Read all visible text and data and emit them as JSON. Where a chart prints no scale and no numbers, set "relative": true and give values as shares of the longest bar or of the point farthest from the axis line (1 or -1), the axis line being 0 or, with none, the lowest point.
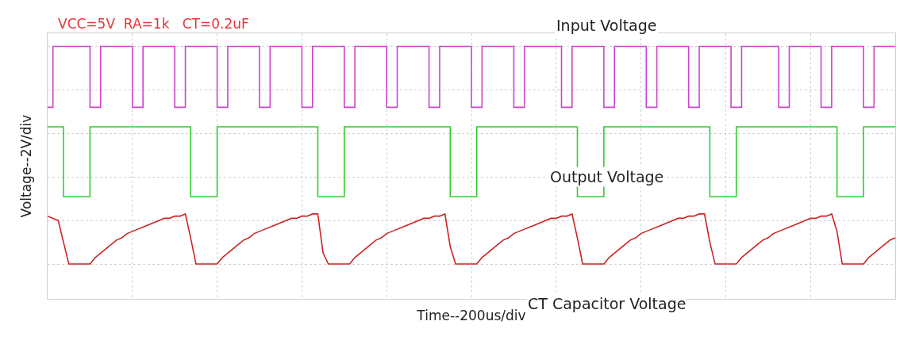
{
  "chart_data": {
    "type": "line",
    "relative": true,
    "xlabel": "Time--200us/div",
    "ylabel": "Voltage--2V/div",
    "annotations": [
      "VCC=5V  RA=1k   CT=0.2uF"
    ],
    "grid": true,
    "legend": false,
    "tick_labels": false,
    "marker": "none",
    "line_style": "solid",
    "categories": [
      null,
      null,
      null,
      null,
      null,
      null,
      null,
      null,
      null,
      null,
      null,
      null,
      null,
      null,
      null,
      null,
      null,
      null,
      null,
      null,
      null,
      null,
      null,
      null,
      null,
      null,
      null,
      null,
      null,
      null,
      null,
      null,
      null,
      null,
      null,
      null,
      null,
      null,
      null,
      null,
      null,
      null,
      null,
      null,
      null,
      null,
      null,
      null,
      null,
      null,
      null,
      null,
      null,
      null,
      null,
      null,
      null,
      null,
      null,
      null,
      null,
      null,
      null,
      null,
      null,
      null,
      null,
      null,
      null,
      null,
      null,
      null,
      null,
      null,
      null,
      null,
      null,
      null,
      null,
      null,
      null,
      null,
      null,
      null,
      null,
      null,
      null,
      null,
      null,
      null,
      null,
      null,
      null,
      null,
      null,
      null,
      null,
      null,
      null,
      null,
      null,
      null,
      null,
      null,
      null,
      null,
      null,
      null,
      null,
      null,
      null,
      null,
      null,
      null,
      null,
      null,
      null,
      null,
      null,
      null,
      null,
      null,
      null,
      null,
      null,
      null,
      null,
      null,
      null,
      null,
      null,
      null,
      null,
      null,
      null,
      null,
      null,
      null,
      null,
      null,
      null,
      null,
      null,
      null,
      null,
      null,
      null,
      null,
      null,
      null,
      null,
      null,
      null,
      null,
      null,
      null,
      null,
      null,
      null,
      null,
      null
    ],
    "series": [
      {
        "name": "Input Voltage",
        "type": "step",
        "color": "#cc44cc",
        "values": [
          0.72,
          1,
          1,
          1,
          1,
          1,
          1,
          1,
          0.72,
          0.72,
          1,
          1,
          1,
          1,
          1,
          1,
          0.72,
          0.72,
          1,
          1,
          1,
          1,
          1,
          1,
          0.72,
          0.72,
          1,
          1,
          1,
          1,
          1,
          1,
          0.72,
          0.72,
          1,
          1,
          1,
          1,
          1,
          1,
          0.72,
          0.72,
          1,
          1,
          1,
          1,
          1,
          1,
          0.72,
          0.72,
          1,
          1,
          1,
          1,
          1,
          1,
          0.72,
          0.72,
          1,
          1,
          1,
          1,
          1,
          1,
          0.72,
          0.72,
          1,
          1,
          1,
          1,
          1,
          1,
          0.72,
          0.72,
          1,
          1,
          1,
          1,
          1,
          1,
          0.72,
          0.72,
          1,
          1,
          1,
          1,
          1,
          1,
          0.72,
          0.72,
          1,
          1,
          1,
          1,
          1,
          1,
          1,
          0.72,
          0.72,
          1,
          1,
          1,
          1,
          1,
          1,
          0.72,
          0.72,
          1,
          1,
          1,
          1,
          1,
          1,
          0.72,
          0.72,
          1,
          1,
          1,
          1,
          1,
          1,
          0.72,
          0.72,
          1,
          1,
          1,
          1,
          1,
          1,
          0.72,
          0.72,
          1,
          1,
          1,
          1,
          1,
          1,
          1,
          0.72,
          0.72,
          1,
          1,
          1,
          1,
          1,
          1,
          0.72,
          0.72,
          1,
          1,
          1,
          1,
          1,
          1,
          0.72,
          0.72,
          1,
          1,
          1,
          1,
          1
        ]
      },
      {
        "name": "Output Voltage",
        "type": "step",
        "color": "#33cc33",
        "values": [
          0.63,
          0.63,
          0.63,
          0.31,
          0.31,
          0.31,
          0.31,
          0.31,
          0.63,
          0.63,
          0.63,
          0.63,
          0.63,
          0.63,
          0.63,
          0.63,
          0.63,
          0.63,
          0.63,
          0.63,
          0.63,
          0.63,
          0.63,
          0.63,
          0.63,
          0.63,
          0.63,
          0.31,
          0.31,
          0.31,
          0.31,
          0.31,
          0.63,
          0.63,
          0.63,
          0.63,
          0.63,
          0.63,
          0.63,
          0.63,
          0.63,
          0.63,
          0.63,
          0.63,
          0.63,
          0.63,
          0.63,
          0.63,
          0.63,
          0.63,
          0.63,
          0.31,
          0.31,
          0.31,
          0.31,
          0.31,
          0.63,
          0.63,
          0.63,
          0.63,
          0.63,
          0.63,
          0.63,
          0.63,
          0.63,
          0.63,
          0.63,
          0.63,
          0.63,
          0.63,
          0.63,
          0.63,
          0.63,
          0.63,
          0.63,
          0.63,
          0.31,
          0.31,
          0.31,
          0.31,
          0.31,
          0.63,
          0.63,
          0.63,
          0.63,
          0.63,
          0.63,
          0.63,
          0.63,
          0.63,
          0.63,
          0.63,
          0.63,
          0.63,
          0.63,
          0.63,
          0.63,
          0.63,
          0.63,
          0.63,
          0.31,
          0.31,
          0.31,
          0.31,
          0.31,
          0.63,
          0.63,
          0.63,
          0.63,
          0.63,
          0.63,
          0.63,
          0.63,
          0.63,
          0.63,
          0.63,
          0.63,
          0.63,
          0.63,
          0.63,
          0.63,
          0.63,
          0.63,
          0.63,
          0.63,
          0.31,
          0.31,
          0.31,
          0.31,
          0.31,
          0.63,
          0.63,
          0.63,
          0.63,
          0.63,
          0.63,
          0.63,
          0.63,
          0.63,
          0.63,
          0.63,
          0.63,
          0.63,
          0.63,
          0.63,
          0.63,
          0.63,
          0.63,
          0.63,
          0.31,
          0.31,
          0.31,
          0.31,
          0.31,
          0.63,
          0.63,
          0.63,
          0.63,
          0.63,
          0.63,
          0.63
        ]
      },
      {
        "name": "CT Capacitor Voltage",
        "color": "#cc2222",
        "values": [
          0.22,
          0.21,
          0.2,
          0.1,
          0,
          0,
          0,
          0,
          0,
          0.03,
          0.05,
          0.07,
          0.09,
          0.11,
          0.12,
          0.14,
          0.15,
          0.16,
          0.17,
          0.18,
          0.19,
          0.2,
          0.21,
          0.21,
          0.22,
          0.22,
          0.23,
          0.12,
          0,
          0,
          0,
          0,
          0,
          0.03,
          0.05,
          0.07,
          0.09,
          0.11,
          0.12,
          0.14,
          0.15,
          0.16,
          0.17,
          0.18,
          0.19,
          0.2,
          0.21,
          0.21,
          0.22,
          0.22,
          0.23,
          0.23,
          0.05,
          0,
          0,
          0,
          0,
          0,
          0.03,
          0.05,
          0.07,
          0.09,
          0.11,
          0.12,
          0.14,
          0.15,
          0.16,
          0.17,
          0.18,
          0.19,
          0.2,
          0.21,
          0.21,
          0.22,
          0.22,
          0.23,
          0.08,
          0,
          0,
          0,
          0,
          0,
          0.03,
          0.05,
          0.07,
          0.09,
          0.11,
          0.12,
          0.14,
          0.15,
          0.16,
          0.17,
          0.18,
          0.19,
          0.2,
          0.21,
          0.21,
          0.22,
          0.22,
          0.23,
          0.12,
          0,
          0,
          0,
          0,
          0,
          0.03,
          0.05,
          0.07,
          0.09,
          0.11,
          0.12,
          0.14,
          0.15,
          0.16,
          0.17,
          0.18,
          0.19,
          0.2,
          0.21,
          0.21,
          0.22,
          0.22,
          0.23,
          0.23,
          0.1,
          0,
          0,
          0,
          0,
          0,
          0.03,
          0.05,
          0.07,
          0.09,
          0.11,
          0.12,
          0.14,
          0.15,
          0.16,
          0.17,
          0.18,
          0.19,
          0.2,
          0.21,
          0.21,
          0.22,
          0.22,
          0.23,
          0.15,
          0,
          0,
          0,
          0,
          0,
          0.03,
          0.05,
          0.07,
          0.09,
          0.11,
          0.12
        ]
      }
    ]
  }
}
